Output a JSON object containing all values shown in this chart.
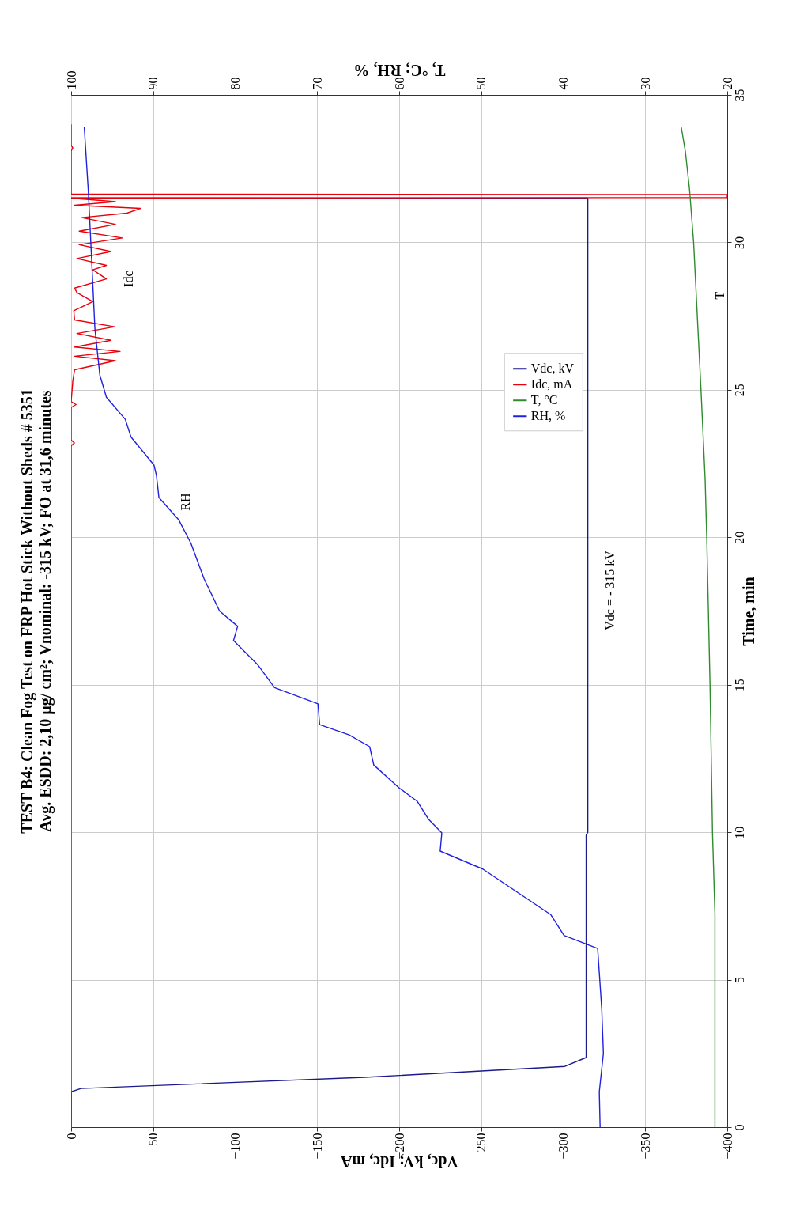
{
  "chart_data": {
    "type": "line",
    "title": "TEST B4: Clean Fog Test on FRP Hot Stick Without Sheds # 5351",
    "subtitle": "Avg. ESDD: 2,10 µg/ cm²; Vnominal: -315 kV;  FO at 31,6 minutes",
    "xlabel": "Vdc, kV;  Idc, mA",
    "x2label": "T, °C;  RH, %",
    "ylabel": "Time, min",
    "xlim": [
      0,
      -400
    ],
    "xticks": [
      0,
      -50,
      -100,
      -150,
      -200,
      -250,
      -300,
      -350,
      -400
    ],
    "x2lim": [
      100,
      20
    ],
    "x2ticks": [
      100,
      90,
      80,
      70,
      60,
      50,
      40,
      30,
      20
    ],
    "ylim": [
      0,
      35
    ],
    "yticks": [
      0,
      5,
      10,
      15,
      20,
      25,
      30,
      35
    ],
    "grid": true,
    "legend": "right",
    "line_style": "solid",
    "marker": "none",
    "series": [
      {
        "name": "Vdc, kV",
        "color": "#1a1a8c",
        "values": [
          0,
          1.2,
          1.31,
          1.69,
          2.06,
          2.36,
          5,
          9.9,
          10,
          20,
          31.5,
          31.51
        ],
        "x": [
          0,
          0,
          -6,
          -179,
          -301,
          -314,
          -314,
          -314,
          -315,
          -315,
          -315,
          0
        ]
      },
      {
        "name": "Idc, mA",
        "color": "#e8000b",
        "values": [
          0,
          23.1,
          23.2,
          23.3,
          24.4,
          24.5,
          24.6,
          25.3,
          25.68,
          25.99,
          26.14,
          26.3,
          26.45,
          26.68,
          26.91,
          27.14,
          27.37,
          27.68,
          27.99,
          28.3,
          28.45,
          28.76,
          29.07,
          29.22,
          29.45,
          29.69,
          29.92,
          30.15,
          30.38,
          30.61,
          30.84,
          30.99,
          31.15,
          31.26,
          31.38,
          31.5,
          31.52,
          31.62,
          31.64,
          33.1,
          33.2,
          33.3,
          34
        ],
        "x": [
          0,
          0,
          -2,
          0,
          0,
          -3,
          0,
          -1,
          -2.1,
          -27,
          -2.1,
          -29.8,
          -2.1,
          -24.3,
          -3.5,
          -26.5,
          -2.1,
          -1.6,
          -13.2,
          -3.5,
          -2.1,
          -21.5,
          -13.2,
          -21.5,
          -3.5,
          -24.3,
          -4.9,
          -31.2,
          -4.9,
          -27,
          -6.3,
          -34,
          -42.3,
          -2.1,
          -27,
          0,
          -400,
          -400,
          0,
          0,
          -1,
          0,
          0
        ]
      },
      {
        "name": "T, °C",
        "color": "#2e8b2e",
        "axis": "x2",
        "values": [
          0,
          6,
          7.2,
          10,
          15,
          20,
          22,
          25,
          30,
          31.8,
          33.07,
          33.9
        ],
        "x": [
          21.5,
          21.5,
          21.5,
          21.8,
          22.1,
          22.5,
          22.7,
          23.2,
          24.1,
          24.6,
          25.1,
          25.6
        ]
      },
      {
        "name": "RH, %",
        "color": "#2020e0",
        "axis": "x2",
        "values": [
          0,
          1.2,
          2.5,
          4,
          6.06,
          6.5,
          7.2,
          8.75,
          9.36,
          9.98,
          10.43,
          11.05,
          11.5,
          12.28,
          12.9,
          13.3,
          13.65,
          14.35,
          14.9,
          15.66,
          16.5,
          16.98,
          17.5,
          18.6,
          19.8,
          20.6,
          21.35,
          22.1,
          22.45,
          23.4,
          24,
          24.75,
          25.5,
          27.06,
          29.4,
          31.7,
          33.9
        ],
        "x": [
          35.5,
          35.6,
          35.1,
          35.3,
          35.8,
          39.9,
          41.5,
          49.8,
          55,
          54.8,
          56.4,
          57.8,
          60,
          63.1,
          63.6,
          66.1,
          69.7,
          69.9,
          75.2,
          77.2,
          80.2,
          79.7,
          81.9,
          83.8,
          85.4,
          86.9,
          89.3,
          89.6,
          89.9,
          92.7,
          93.4,
          95.7,
          96.5,
          97.1,
          97.5,
          97.9,
          98.4
        ]
      }
    ],
    "annotations": [
      {
        "text": "Idc",
        "x": -21.5,
        "y": 28.76
      },
      {
        "text": "RH",
        "x": -56.4,
        "y": 21.2
      },
      {
        "text": "Vdc = - 315 kV",
        "x": -315,
        "y": 18.2
      },
      {
        "text": "T",
        "x": -382.4,
        "y": 28.2
      }
    ]
  }
}
